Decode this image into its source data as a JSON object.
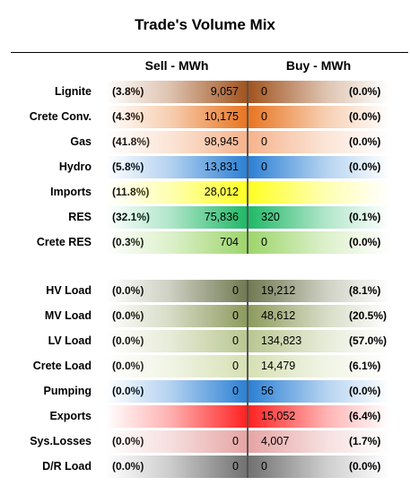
{
  "title": "Trade's Volume Mix",
  "columns": {
    "sell": "Sell - MWh",
    "buy": "Buy - MWh"
  },
  "chart_data": {
    "type": "table",
    "title": "Trade's Volume Mix",
    "columns": [
      "Sell - MWh",
      "Buy - MWh"
    ],
    "groups": [
      {
        "rows": [
          {
            "label": "Lignite",
            "sell_pct": "(3.8%)",
            "sell": 9057,
            "buy": 0,
            "buy_pct": "(0.0%)",
            "color": "#a0521d"
          },
          {
            "label": "Crete Conv.",
            "sell_pct": "(4.3%)",
            "sell": 10175,
            "buy": 0,
            "buy_pct": "(0.0%)",
            "color": "#e87420"
          },
          {
            "label": "Gas",
            "sell_pct": "(41.8%)",
            "sell": 98945,
            "buy": 0,
            "buy_pct": "(0.0%)",
            "color": "#f5b38c"
          },
          {
            "label": "Hydro",
            "sell_pct": "(5.8%)",
            "sell": 13831,
            "buy": 0,
            "buy_pct": "(0.0%)",
            "color": "#2a7fd4"
          },
          {
            "label": "Imports",
            "sell_pct": "(11.8%)",
            "sell": 28012,
            "buy": null,
            "buy_pct": "",
            "color": "#ffff22"
          },
          {
            "label": "RES",
            "sell_pct": "(32.1%)",
            "sell": 75836,
            "buy": 320,
            "buy_pct": "(0.1%)",
            "color": "#1fb866"
          },
          {
            "label": "Crete RES",
            "sell_pct": "(0.3%)",
            "sell": 704,
            "buy": 0,
            "buy_pct": "(0.0%)",
            "color": "#9cd56a"
          }
        ]
      },
      {
        "rows": [
          {
            "label": "HV Load",
            "sell_pct": "(0.0%)",
            "sell": 0,
            "buy": 19212,
            "buy_pct": "(8.1%)",
            "color": "#707850"
          },
          {
            "label": "MV Load",
            "sell_pct": "(0.0%)",
            "sell": 0,
            "buy": 48612,
            "buy_pct": "(20.5%)",
            "color": "#8c9a5c"
          },
          {
            "label": "LV Load",
            "sell_pct": "(0.0%)",
            "sell": 0,
            "buy": 134823,
            "buy_pct": "(57.0%)",
            "color": "#b9c690"
          },
          {
            "label": "Crete Load",
            "sell_pct": "(0.0%)",
            "sell": 0,
            "buy": 14479,
            "buy_pct": "(6.1%)",
            "color": "#d6e0b4"
          },
          {
            "label": "Pumping",
            "sell_pct": "(0.0%)",
            "sell": 0,
            "buy": 56,
            "buy_pct": "(0.0%)",
            "color": "#2a7fd4"
          },
          {
            "label": "Exports",
            "sell_pct": "",
            "sell": null,
            "buy": 15052,
            "buy_pct": "(6.4%)",
            "color": "#ff2020"
          },
          {
            "label": "Sys.Losses",
            "sell_pct": "(0.0%)",
            "sell": 0,
            "buy": 4007,
            "buy_pct": "(1.7%)",
            "color": "#e6a3a3"
          },
          {
            "label": "D/R Load",
            "sell_pct": "(0.0%)",
            "sell": 0,
            "buy": 0,
            "buy_pct": "(0.0%)",
            "color": "#707070"
          }
        ]
      }
    ]
  }
}
